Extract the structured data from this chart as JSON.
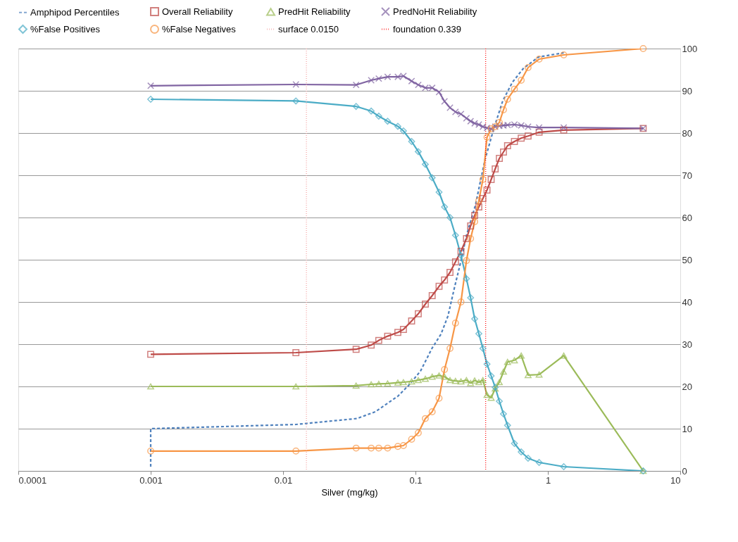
{
  "chart_data": {
    "type": "line",
    "xlabel": "Silver (mg/kg)",
    "log": "x",
    "grid": "y",
    "legend": "top",
    "xlim": [
      0.0001,
      10
    ],
    "xticks": [
      0.0001,
      0.001,
      0.01,
      0.1,
      1,
      10
    ],
    "ylim": [
      0,
      100
    ],
    "yticks": [
      0,
      10,
      20,
      30,
      40,
      50,
      60,
      70,
      80,
      90,
      100
    ],
    "x": [
      0.001,
      0.0125,
      0.0356,
      0.0463,
      0.0528,
      0.0616,
      0.0736,
      0.0811,
      0.0935,
      0.105,
      0.1187,
      0.1337,
      0.1507,
      0.1657,
      0.1823,
      0.2005,
      0.2206,
      0.2427,
      0.2608,
      0.28,
      0.301,
      0.323,
      0.347,
      0.373,
      0.4,
      0.43,
      0.462,
      0.496,
      0.559,
      0.629,
      0.709,
      0.859,
      1.318,
      5.25
    ],
    "series": [
      {
        "name": "Amphipod Percentiles",
        "color": "#4f81bd",
        "marker": "none",
        "line_style": "dashed",
        "x": [
          0.001,
          0.001,
          0.0125,
          0.0361,
          0.0497,
          0.0737,
          0.0903,
          0.1094,
          0.1337,
          0.156,
          0.176,
          0.198,
          0.221,
          0.243,
          0.283,
          0.335,
          0.391,
          0.456,
          0.539,
          0.653,
          0.849,
          1.318
        ],
        "values": [
          1,
          10,
          11,
          12.4,
          14,
          17.7,
          20.5,
          23.7,
          29.1,
          32.4,
          36.7,
          43.7,
          49.8,
          55.8,
          62.8,
          73.7,
          81.1,
          87.6,
          92,
          95.3,
          98,
          99
        ]
      },
      {
        "name": "Overall Reliability",
        "color": "#be4b48",
        "marker": "square",
        "line_style": "solid",
        "values": [
          27.6,
          28,
          28.8,
          29.8,
          30.9,
          31.9,
          32.8,
          33.5,
          35.5,
          37.2,
          39.5,
          41.5,
          43.7,
          45.2,
          47,
          49.5,
          52,
          55,
          58,
          60.5,
          62.5,
          64.5,
          66.5,
          69,
          71.5,
          74,
          75.5,
          77,
          78,
          78.8,
          79.3,
          80.2,
          80.7,
          81.1
        ]
      },
      {
        "name": "PredHit Reliability",
        "color": "#9bbb59",
        "marker": "triangle",
        "line_style": "solid",
        "values": [
          20,
          20,
          20.2,
          20.5,
          20.6,
          20.7,
          20.9,
          21,
          21.2,
          21.5,
          21.8,
          22.3,
          22.6,
          22.3,
          21.5,
          21.3,
          21.2,
          21.5,
          20.8,
          21.4,
          21,
          21.5,
          18,
          17.3,
          19.5,
          21,
          23.5,
          25.8,
          26.2,
          27.3,
          22.7,
          22.8,
          27.3,
          0
        ]
      },
      {
        "name": "PredNoHit Reliability",
        "color": "#8064a2",
        "marker": "cross",
        "line_style": "solid",
        "values": [
          91.2,
          91.5,
          91.4,
          92.5,
          92.9,
          93.3,
          93.3,
          93.5,
          92.3,
          91.4,
          90.7,
          90.7,
          89.7,
          87.5,
          86,
          85,
          84.5,
          83.5,
          82.8,
          82.3,
          82,
          81.5,
          81.2,
          81,
          81.5,
          81.7,
          81.8,
          81.9,
          82,
          81.8,
          81.5,
          81.3,
          81.3,
          81.1
        ]
      },
      {
        "name": "%False Positives",
        "color": "#4bacc6",
        "marker": "diamond",
        "line_style": "solid",
        "values": [
          88,
          87.6,
          86.3,
          85.2,
          84,
          82.8,
          81.6,
          80.5,
          78,
          75.6,
          72.6,
          69.4,
          66,
          62.5,
          60,
          55.8,
          51,
          45.5,
          41,
          36,
          32.5,
          29,
          25.3,
          22.5,
          19.8,
          16.5,
          13.5,
          10.8,
          6.5,
          4.5,
          3,
          2,
          1,
          0
        ]
      },
      {
        "name": "%False Negatives",
        "color": "#f79646",
        "marker": "circle",
        "line_style": "solid",
        "values": [
          4.7,
          4.7,
          5.4,
          5.4,
          5.4,
          5.4,
          5.8,
          6,
          7.5,
          9,
          12.4,
          14,
          17.2,
          24,
          29,
          35,
          40,
          49.8,
          55,
          59,
          64,
          69,
          79,
          81,
          81.5,
          82.5,
          85.5,
          88,
          90.4,
          92.5,
          95.5,
          97.5,
          98.5,
          100
        ]
      }
    ],
    "ref_lines": [
      {
        "axis": "x",
        "value": 0.015,
        "label": "surface 0.0150",
        "color": "#f4a0a0",
        "line_style": "dotted"
      },
      {
        "axis": "x",
        "value": 0.339,
        "label": "foundation 0.339",
        "color": "#ff0000",
        "line_style": "dotted"
      }
    ]
  }
}
